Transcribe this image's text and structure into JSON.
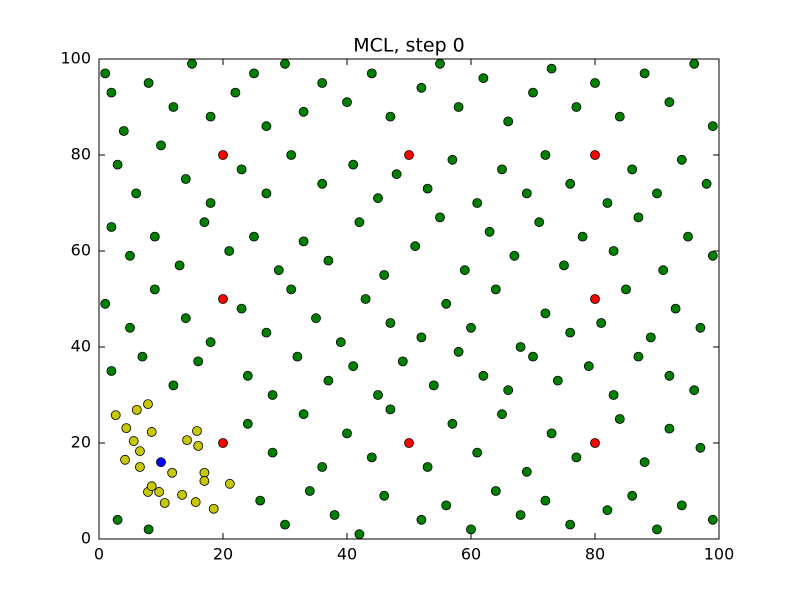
{
  "chart_data": {
    "type": "scatter",
    "title": "MCL, step 0",
    "xlim": [
      0,
      100
    ],
    "ylim": [
      0,
      100
    ],
    "xticks": [
      0,
      20,
      40,
      60,
      80,
      100
    ],
    "yticks": [
      0,
      20,
      40,
      60,
      80,
      100
    ],
    "series": [
      {
        "color": "#008000",
        "x": [
          1,
          2,
          4,
          8,
          12,
          15,
          18,
          22,
          25,
          27,
          30,
          33,
          36,
          40,
          44,
          47,
          52,
          55,
          58,
          62,
          66,
          70,
          73,
          77,
          80,
          84,
          88,
          92,
          96,
          99,
          3,
          6,
          10,
          14,
          18,
          23,
          27,
          31,
          36,
          41,
          45,
          48,
          53,
          57,
          61,
          65,
          69,
          72,
          76,
          82,
          86,
          90,
          94,
          98,
          2,
          5,
          9,
          13,
          17,
          21,
          25,
          29,
          33,
          37,
          42,
          46,
          51,
          55,
          59,
          63,
          67,
          71,
          75,
          78,
          83,
          87,
          91,
          95,
          99,
          1,
          5,
          9,
          14,
          18,
          23,
          27,
          31,
          35,
          39,
          43,
          47,
          52,
          56,
          60,
          64,
          68,
          72,
          76,
          81,
          85,
          89,
          93,
          97,
          2,
          7,
          12,
          16,
          24,
          28,
          32,
          37,
          41,
          45,
          49,
          54,
          58,
          62,
          66,
          70,
          74,
          79,
          83,
          87,
          92,
          96,
          24,
          28,
          33,
          36,
          40,
          44,
          47,
          53,
          57,
          61,
          65,
          69,
          73,
          77,
          84,
          88,
          92,
          97,
          3,
          8,
          26,
          30,
          34,
          38,
          42,
          46,
          52,
          56,
          60,
          64,
          68,
          72,
          76,
          82,
          86,
          90,
          94,
          99
        ],
        "values": [
          97,
          93,
          85,
          95,
          90,
          99,
          88,
          93,
          97,
          86,
          99,
          89,
          95,
          91,
          97,
          88,
          94,
          99,
          90,
          96,
          87,
          93,
          98,
          90,
          95,
          88,
          97,
          91,
          99,
          86,
          78,
          72,
          82,
          75,
          70,
          77,
          72,
          80,
          74,
          78,
          71,
          76,
          73,
          79,
          70,
          77,
          72,
          80,
          74,
          70,
          77,
          72,
          79,
          74,
          65,
          59,
          63,
          57,
          66,
          60,
          63,
          56,
          62,
          58,
          66,
          55,
          61,
          67,
          56,
          64,
          59,
          66,
          57,
          63,
          60,
          67,
          56,
          63,
          59,
          49,
          44,
          52,
          46,
          41,
          48,
          43,
          52,
          46,
          41,
          50,
          45,
          42,
          49,
          44,
          52,
          40,
          47,
          43,
          45,
          52,
          42,
          48,
          44,
          35,
          38,
          32,
          37,
          34,
          30,
          38,
          33,
          36,
          30,
          37,
          32,
          39,
          34,
          31,
          38,
          33,
          36,
          30,
          38,
          34,
          31,
          24,
          18,
          26,
          15,
          22,
          17,
          27,
          15,
          24,
          18,
          26,
          14,
          22,
          17,
          25,
          16,
          23,
          19,
          4,
          2,
          8,
          3,
          10,
          5,
          1,
          9,
          4,
          7,
          2,
          10,
          5,
          8,
          3,
          6,
          9,
          2,
          7,
          4
        ]
      },
      {
        "color": "#ff0000",
        "x": [
          20,
          50,
          80,
          20,
          80,
          20,
          50,
          80
        ],
        "values": [
          80,
          80,
          80,
          50,
          50,
          20,
          20,
          20
        ]
      },
      {
        "color": "#c8c800",
        "x": [
          2.7,
          4.4,
          6.1,
          7.9,
          4.2,
          5.6,
          6.6,
          8.5,
          6.6,
          7.9,
          8.5,
          9.7,
          10.6,
          11.8,
          13.4,
          14.2,
          15.8,
          16,
          17,
          17,
          15.6,
          18.5,
          21.1
        ],
        "values": [
          25.8,
          23.1,
          26.9,
          28.1,
          16.5,
          20.4,
          18.3,
          22.3,
          15,
          9.8,
          11,
          9.8,
          7.5,
          13.8,
          9.2,
          20.6,
          22.5,
          19.4,
          13.8,
          12.1,
          7.7,
          6.3,
          11.5
        ]
      },
      {
        "color": "#0000ff",
        "x": [
          10
        ],
        "values": [
          16
        ]
      }
    ]
  }
}
